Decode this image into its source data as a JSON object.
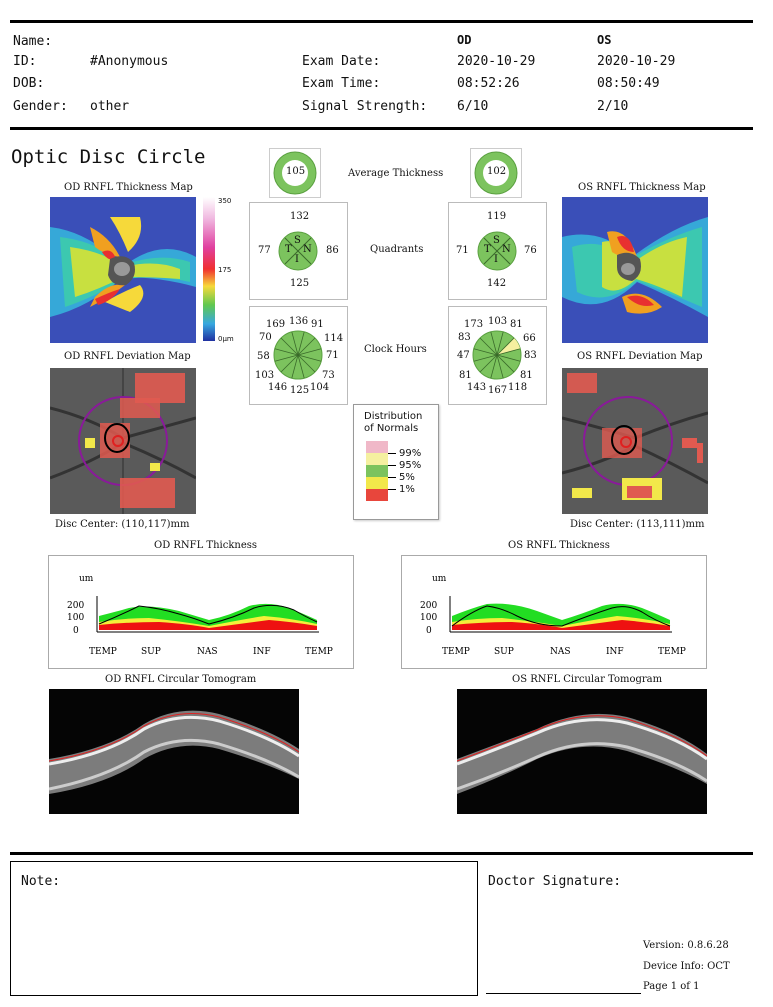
{
  "header": {
    "name_label": "Name:",
    "id_label": "ID:",
    "id_value": "#Anonymous",
    "dob_label": "DOB:",
    "gender_label": "Gender:",
    "gender_value": "other",
    "exam_date_label": "Exam Date:",
    "exam_time_label": "Exam Time:",
    "signal_label": "Signal Strength:",
    "od_label": "OD",
    "os_label": "OS",
    "od_exam_date": "2020-10-29",
    "os_exam_date": "2020-10-29",
    "od_exam_time": "08:52:26",
    "os_exam_time": "08:50:49",
    "od_signal": "6/10",
    "os_signal": "2/10"
  },
  "title": "Optic Disc Circle",
  "od": {
    "thickness_map_title": "OD RNFL Thickness Map",
    "deviation_map_title": "OD RNFL Deviation Map",
    "disc_center": "Disc Center: (110,117)mm",
    "avg_thickness": "105",
    "quadrants": {
      "S": "132",
      "N": "86",
      "I": "125",
      "T": "77"
    },
    "clock_hours": [
      "136",
      "91",
      "114",
      "71",
      "73",
      "104",
      "125",
      "146",
      "103",
      "58",
      "70",
      "169"
    ],
    "rnfl_thickness_title": "OD RNFL Thickness",
    "tomogram_title": "OD RNFL Circular Tomogram"
  },
  "os": {
    "thickness_map_title": "OS RNFL Thickness Map",
    "deviation_map_title": "OS RNFL Deviation Map",
    "disc_center": "Disc Center: (113,111)mm",
    "avg_thickness": "102",
    "quadrants": {
      "S": "119",
      "N": "76",
      "I": "142",
      "T": "71"
    },
    "clock_hours": [
      "103",
      "81",
      "66",
      "83",
      "81",
      "118",
      "167",
      "143",
      "81",
      "47",
      "83",
      "173"
    ],
    "rnfl_thickness_title": "OS RNFL Thickness",
    "tomogram_title": "OS RNFL Circular Tomogram"
  },
  "center_labels": {
    "average": "Average Thickness",
    "quadrants": "Quadrants",
    "clock": "Clock Hours"
  },
  "quadrant_letters": {
    "S": "S",
    "T": "T",
    "N": "N",
    "I": "I"
  },
  "colorbar": {
    "max": "350",
    "mid": "175",
    "min": "0µm"
  },
  "legend": {
    "title_line1": "Distribution",
    "title_line2": "of Normals",
    "items": [
      {
        "label": "99%",
        "color": "#f0b8c8"
      },
      {
        "label": "95%",
        "color": "#f5f0a0"
      },
      {
        "label": "5%",
        "color": "#7cc35e"
      },
      {
        "label": "1%",
        "color": "#f2e84a"
      },
      {
        "label": "",
        "color": "#e8463c"
      }
    ]
  },
  "graph": {
    "unit": "um",
    "y_ticks": [
      "200",
      "100",
      "0"
    ],
    "x_ticks": [
      "TEMP",
      "SUP",
      "NAS",
      "INF",
      "TEMP"
    ]
  },
  "footer": {
    "note_label": "Note:",
    "signature_label": "Doctor Signature:",
    "version": "Version: 0.8.6.28",
    "device": "Device Info: OCT",
    "page": "Page 1 of 1"
  },
  "chart_data": [
    {
      "type": "line",
      "title": "OD RNFL Thickness",
      "ylabel": "um",
      "ylim": [
        0,
        250
      ],
      "x": [
        "TEMP",
        "SUP",
        "NAS",
        "INF",
        "TEMP"
      ],
      "series": [
        {
          "values": [
            70,
            190,
            85,
            120,
            75
          ]
        }
      ]
    },
    {
      "type": "line",
      "title": "OS RNFL Thickness",
      "ylabel": "um",
      "ylim": [
        0,
        250
      ],
      "x": [
        "TEMP",
        "SUP",
        "NAS",
        "INF",
        "TEMP"
      ],
      "series": [
        {
          "values": [
            70,
            180,
            90,
            190,
            70
          ]
        }
      ]
    }
  ]
}
